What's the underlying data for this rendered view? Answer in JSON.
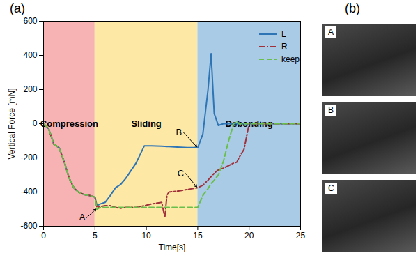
{
  "chart_data": {
    "type": "line",
    "panel_label": "(a)",
    "x_label": "Time[s]",
    "y_label": "Vertical Force [mN]",
    "xlim": [
      0,
      25
    ],
    "xticks": [
      0,
      5,
      10,
      15,
      20,
      25
    ],
    "ylim": [
      -600,
      600
    ],
    "yticks": [
      -600,
      -400,
      -200,
      0,
      200,
      400,
      600
    ],
    "grid": false,
    "legend": "top-right",
    "regions": [
      {
        "label": "Compression",
        "start": 0,
        "end": 5,
        "color": "#f7b3b3"
      },
      {
        "label": "Sliding",
        "start": 5,
        "end": 15,
        "color": "#fde8a6"
      },
      {
        "label": "Debonding",
        "start": 15,
        "end": 25,
        "color": "#a9cbe6"
      }
    ],
    "x": [
      0,
      0.5,
      1,
      1.5,
      2,
      2.5,
      3,
      3.5,
      4,
      4.5,
      5,
      5.2,
      5.5,
      6,
      6.5,
      7,
      7.5,
      8,
      9,
      9.8,
      10.5,
      11.5,
      11.8,
      12,
      12.2,
      13,
      14,
      15,
      15.5,
      16,
      16.3,
      16.6,
      17,
      17.5,
      18,
      18.5,
      18.8,
      19,
      19.5,
      20,
      20.2,
      21,
      25
    ],
    "series": [
      {
        "name": "L",
        "color": "#2e75b6",
        "line_style": "solid",
        "values": [
          0,
          -30,
          -120,
          -140,
          -220,
          -320,
          -380,
          -405,
          -415,
          -420,
          -430,
          -480,
          -470,
          -460,
          -420,
          -375,
          -355,
          -320,
          -230,
          -130,
          -130,
          -132,
          -133,
          -134,
          -134,
          -137,
          -140,
          -140,
          -60,
          200,
          410,
          60,
          -10,
          0,
          0,
          0,
          0,
          0,
          0,
          0,
          0,
          0,
          0
        ]
      },
      {
        "name": "R",
        "color": "#a0303a",
        "line_style": "dashdot",
        "values": [
          0,
          -30,
          -120,
          -140,
          -220,
          -320,
          -380,
          -405,
          -415,
          -420,
          -430,
          -490,
          -485,
          -480,
          -480,
          -490,
          -495,
          -490,
          -490,
          -480,
          -470,
          -460,
          -550,
          -420,
          -400,
          -395,
          -385,
          -375,
          -360,
          -330,
          -310,
          -290,
          -270,
          -260,
          -245,
          -230,
          -225,
          -200,
          -150,
          0,
          0,
          0,
          0
        ]
      },
      {
        "name": "keep",
        "color": "#6abf4b",
        "line_style": "dashed",
        "values": [
          0,
          -30,
          -120,
          -140,
          -220,
          -320,
          -380,
          -405,
          -415,
          -420,
          -430,
          -500,
          -490,
          -490,
          -490,
          -490,
          -490,
          -490,
          -490,
          -490,
          -490,
          -490,
          -490,
          -490,
          -490,
          -490,
          -490,
          -490,
          -420,
          -380,
          -350,
          -330,
          -300,
          -220,
          -100,
          0,
          15,
          0,
          0,
          0,
          0,
          0,
          0
        ]
      }
    ],
    "annotations": [
      {
        "text": "A",
        "x": 4.2,
        "y": -550,
        "point_x": 5.1,
        "point_y": -500
      },
      {
        "text": "B",
        "x": 13.6,
        "y": -50,
        "point_x": 14.9,
        "point_y": -135
      },
      {
        "text": "C",
        "x": 13.8,
        "y": -290,
        "point_x": 14.9,
        "point_y": -370
      }
    ]
  },
  "photos": {
    "panel_label": "(b)",
    "panels": [
      "A",
      "B",
      "C"
    ]
  }
}
